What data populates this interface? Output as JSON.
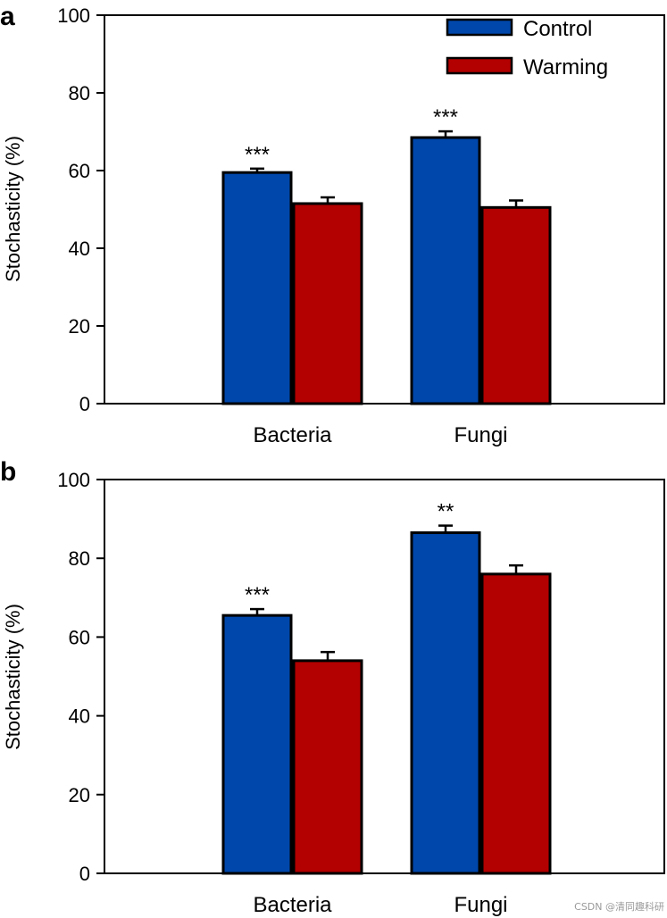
{
  "chart_data": [
    {
      "panel": "a",
      "type": "bar",
      "title": "",
      "xlabel": "",
      "ylabel": "Stochasticity (%)",
      "ylim": [
        0,
        100
      ],
      "yticks": [
        0,
        20,
        40,
        60,
        80,
        100
      ],
      "categories": [
        "Bacteria",
        "Fungi"
      ],
      "series": [
        {
          "name": "Control",
          "color": "#0047ab",
          "values": [
            59.5,
            68.5
          ],
          "errors": [
            1.0,
            1.6
          ]
        },
        {
          "name": "Warming",
          "color": "#b30000",
          "values": [
            51.5,
            50.5
          ],
          "errors": [
            1.6,
            1.8
          ]
        }
      ],
      "significance": [
        "***",
        "***"
      ],
      "legend": {
        "position": "top-right",
        "entries": [
          "Control",
          "Warming"
        ]
      }
    },
    {
      "panel": "b",
      "type": "bar",
      "title": "",
      "xlabel": "",
      "ylabel": "Stochasticity (%)",
      "ylim": [
        0,
        100
      ],
      "yticks": [
        0,
        20,
        40,
        60,
        80,
        100
      ],
      "categories": [
        "Bacteria",
        "Fungi"
      ],
      "series": [
        {
          "name": "Control",
          "color": "#0047ab",
          "values": [
            65.5,
            86.5
          ],
          "errors": [
            1.6,
            1.8
          ]
        },
        {
          "name": "Warming",
          "color": "#b30000",
          "values": [
            54.0,
            76.0
          ],
          "errors": [
            2.2,
            2.2
          ]
        }
      ],
      "significance": [
        "***",
        "**"
      ],
      "legend": null
    }
  ],
  "watermark": "CSDN @清同趣科研"
}
